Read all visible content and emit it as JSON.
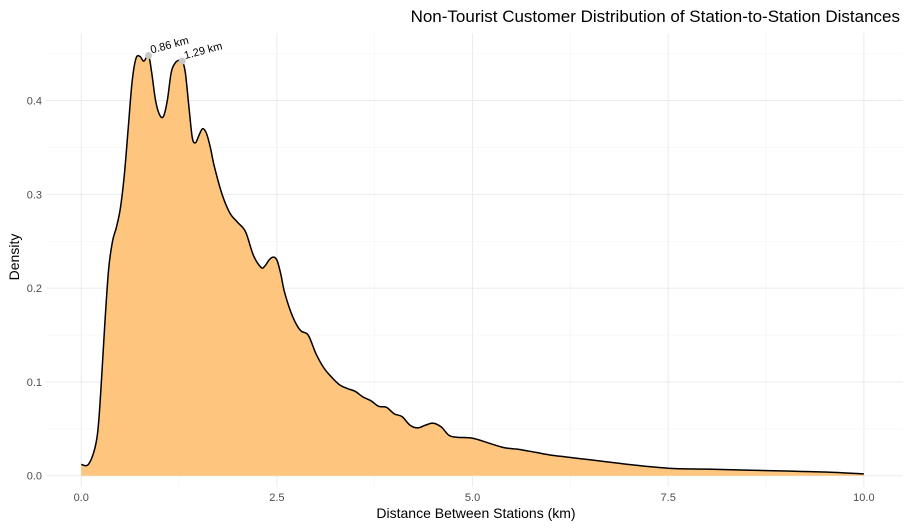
{
  "chart_data": {
    "type": "area",
    "title": "Non-Tourist Customer Distribution of Station-to-Station Distances",
    "xlabel": "Distance Between Stations (km)",
    "ylabel": "Density",
    "xlim": [
      -0.45,
      10.5
    ],
    "ylim": [
      -0.012,
      0.472
    ],
    "x_ticks": [
      0.0,
      2.5,
      5.0,
      7.5,
      10.0
    ],
    "x_tick_labels": [
      "0.0",
      "2.5",
      "5.0",
      "7.5",
      "10.0"
    ],
    "y_ticks": [
      0.0,
      0.1,
      0.2,
      0.3,
      0.4
    ],
    "y_tick_labels": [
      "0.0",
      "0.1",
      "0.2",
      "0.3",
      "0.4"
    ],
    "grid": true,
    "legend": "none",
    "fill_color": "#fec57f",
    "line_color": "#000000",
    "peak_marker_color": "#c8c8c8",
    "series": [
      {
        "x": [
          0.0,
          0.1,
          0.2,
          0.25,
          0.3,
          0.35,
          0.4,
          0.45,
          0.5,
          0.55,
          0.6,
          0.65,
          0.7,
          0.75,
          0.8,
          0.86,
          0.9,
          0.95,
          1.0,
          1.05,
          1.1,
          1.15,
          1.2,
          1.25,
          1.29,
          1.33,
          1.38,
          1.42,
          1.46,
          1.5,
          1.55,
          1.6,
          1.65,
          1.7,
          1.8,
          1.9,
          2.0,
          2.1,
          2.2,
          2.3,
          2.35,
          2.4,
          2.45,
          2.5,
          2.55,
          2.6,
          2.7,
          2.8,
          2.9,
          3.0,
          3.1,
          3.2,
          3.3,
          3.4,
          3.5,
          3.6,
          3.7,
          3.8,
          3.9,
          4.0,
          4.1,
          4.2,
          4.3,
          4.4,
          4.5,
          4.6,
          4.7,
          4.8,
          5.0,
          5.2,
          5.4,
          5.6,
          5.8,
          6.0,
          6.2,
          6.5,
          6.8,
          7.0,
          7.5,
          8.0,
          8.5,
          9.0,
          9.5,
          10.0
        ],
        "values": [
          0.012,
          0.013,
          0.04,
          0.09,
          0.16,
          0.22,
          0.25,
          0.265,
          0.285,
          0.32,
          0.37,
          0.42,
          0.445,
          0.447,
          0.442,
          0.448,
          0.43,
          0.4,
          0.385,
          0.383,
          0.4,
          0.43,
          0.44,
          0.443,
          0.442,
          0.43,
          0.39,
          0.36,
          0.355,
          0.362,
          0.37,
          0.365,
          0.35,
          0.33,
          0.3,
          0.28,
          0.27,
          0.26,
          0.235,
          0.222,
          0.224,
          0.23,
          0.233,
          0.23,
          0.215,
          0.195,
          0.17,
          0.155,
          0.15,
          0.13,
          0.115,
          0.105,
          0.097,
          0.093,
          0.09,
          0.084,
          0.08,
          0.074,
          0.073,
          0.066,
          0.063,
          0.054,
          0.051,
          0.054,
          0.056,
          0.052,
          0.043,
          0.041,
          0.04,
          0.035,
          0.03,
          0.028,
          0.025,
          0.022,
          0.02,
          0.017,
          0.014,
          0.012,
          0.008,
          0.007,
          0.006,
          0.005,
          0.004,
          0.002
        ]
      }
    ],
    "annotations": [
      {
        "x": 0.86,
        "y": 0.448,
        "text": "0.86 km"
      },
      {
        "x": 1.29,
        "y": 0.442,
        "text": "1.29 km"
      }
    ]
  }
}
